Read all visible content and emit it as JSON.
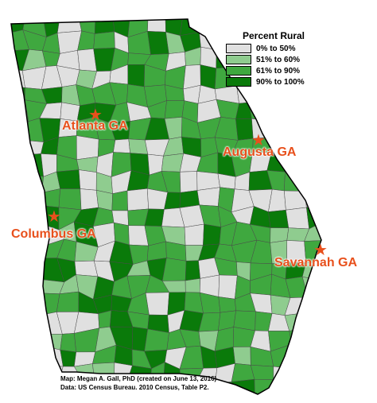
{
  "legend": {
    "title": "Percent Rural",
    "items": [
      {
        "label": "0% to 50%",
        "color": "#e0e0e0"
      },
      {
        "label": "51% to 60%",
        "color": "#8fcc8f"
      },
      {
        "label": "61% to 90%",
        "color": "#3fa83f"
      },
      {
        "label": "90% to 100%",
        "color": "#0a7a0a"
      }
    ]
  },
  "cities": {
    "atlanta": {
      "label": "Atlanta GA"
    },
    "augusta": {
      "label": "Augusta GA"
    },
    "columbus": {
      "label": "Columbus GA"
    },
    "savannah": {
      "label": "Savannah GA"
    }
  },
  "city_color": "#e8501c",
  "credits": {
    "line1": "Map: Megan A. Gall, PhD (created on June 13, 2016)",
    "line2": "Data: US Census Bureau. 2010 Census, Table P2."
  }
}
